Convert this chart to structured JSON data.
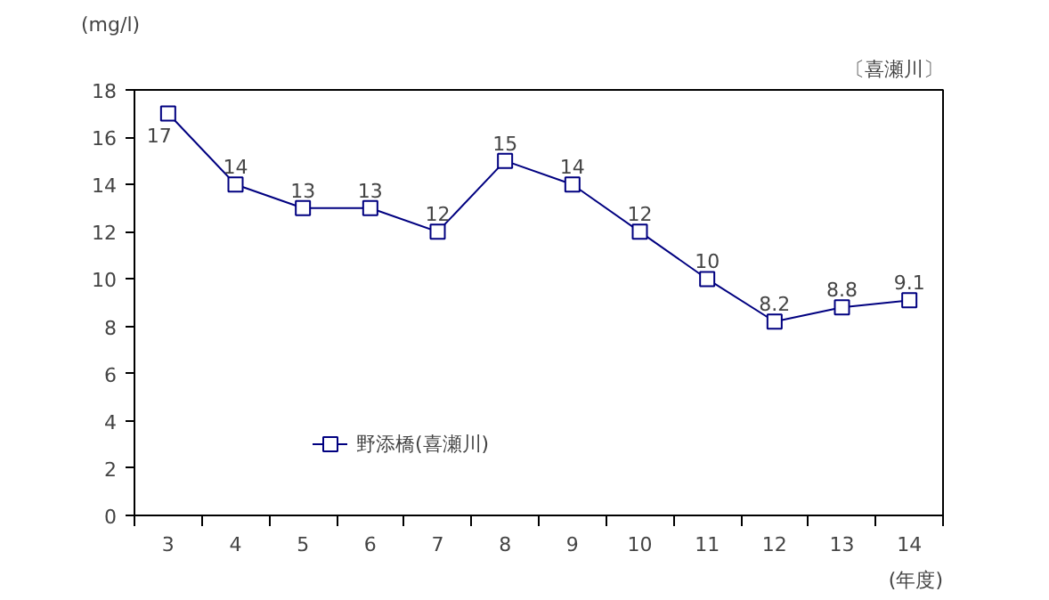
{
  "chart_data": {
    "type": "line",
    "ylabel": "(mg/l)",
    "xlabel": "(年度)",
    "annotations": [
      "〔喜瀬川〕"
    ],
    "categories": [
      "3",
      "4",
      "5",
      "6",
      "7",
      "8",
      "9",
      "10",
      "11",
      "12",
      "13",
      "14"
    ],
    "series": [
      {
        "name": "野添橋(喜瀬川)",
        "color": "#000080",
        "values": [
          17,
          14,
          13,
          13,
          12,
          15,
          14,
          12,
          10,
          8.2,
          8.8,
          9.1
        ]
      }
    ],
    "ylim": [
      0,
      18
    ],
    "yticks": [
      0,
      2,
      4,
      6,
      8,
      10,
      12,
      14,
      16,
      18
    ],
    "grid": false,
    "data_labels": true,
    "marker": "square",
    "legend": "bottom left",
    "line_style": "solid"
  }
}
